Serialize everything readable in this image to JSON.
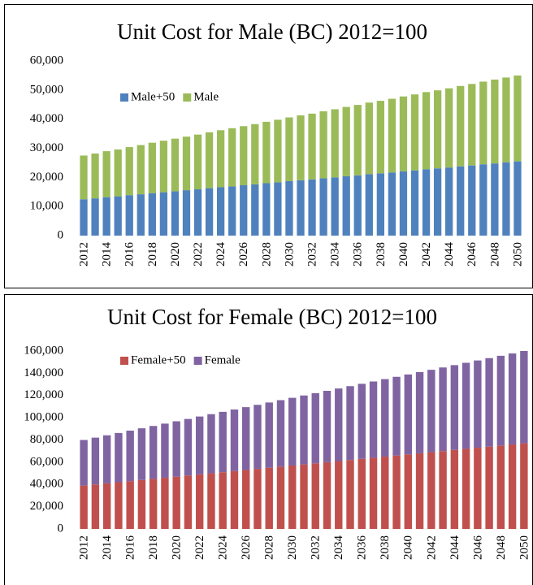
{
  "chart_data": [
    {
      "type": "bar",
      "stacked": true,
      "title": "Unit Cost for Male (BC) 2012=100",
      "categories": [
        "2012",
        null,
        "2014",
        null,
        "2016",
        null,
        "2018",
        null,
        "2020",
        null,
        "2022",
        null,
        "2024",
        null,
        "2026",
        null,
        "2028",
        null,
        "2030",
        null,
        "2032",
        null,
        "2034",
        null,
        "2036",
        null,
        "2038",
        null,
        "2040",
        null,
        "2042",
        null,
        "2044",
        null,
        "2046",
        null,
        "2048",
        null,
        "2050"
      ],
      "series": [
        {
          "name": "Male+50",
          "color": "#4f81bd",
          "values": [
            12500,
            12800,
            13200,
            13500,
            13900,
            14200,
            14600,
            14900,
            15200,
            15600,
            15900,
            16300,
            16600,
            16900,
            17300,
            17600,
            18000,
            18300,
            18700,
            19000,
            19300,
            19700,
            20000,
            20400,
            20700,
            21100,
            21400,
            21700,
            22100,
            22400,
            22800,
            23100,
            23400,
            23800,
            24100,
            24500,
            24800,
            25200,
            25500
          ]
        },
        {
          "name": "Male",
          "color": "#9bbb59",
          "values": [
            15000,
            15400,
            15800,
            16100,
            16500,
            16900,
            17300,
            17700,
            18100,
            18400,
            18800,
            19200,
            19600,
            20000,
            20300,
            20700,
            21100,
            21500,
            21900,
            22300,
            22600,
            23000,
            23400,
            23800,
            24200,
            24600,
            24900,
            25300,
            25700,
            26100,
            26500,
            26800,
            27200,
            27600,
            28000,
            28400,
            28800,
            29100,
            29500
          ]
        }
      ],
      "ylim": [
        0,
        60000
      ],
      "yticks": [
        0,
        {
          "value": 10000,
          "label": "10,000"
        },
        {
          "value": 20000,
          "label": "20,000"
        },
        {
          "value": 30000,
          "label": "30,000"
        },
        {
          "value": 40000,
          "label": "40,000"
        },
        {
          "value": 50000,
          "label": "50,000"
        },
        {
          "value": 60000,
          "label": "60,000"
        }
      ],
      "legend": "top-left"
    },
    {
      "type": "bar",
      "stacked": true,
      "title": "Unit Cost for Female (BC) 2012=100",
      "categories": [
        "2012",
        null,
        "2014",
        null,
        "2016",
        null,
        "2018",
        null,
        "2020",
        null,
        "2022",
        null,
        "2024",
        null,
        "2026",
        null,
        "2028",
        null,
        "2030",
        null,
        "2032",
        null,
        "2034",
        null,
        "2036",
        null,
        "2038",
        null,
        "2040",
        null,
        "2042",
        null,
        "2044",
        null,
        "2046",
        null,
        "2048",
        null,
        "2050"
      ],
      "series": [
        {
          "name": "Female+50",
          "color": "#c0504d",
          "values": [
            39000,
            40000,
            41000,
            42000,
            43000,
            44000,
            45000,
            46000,
            47000,
            48000,
            49000,
            50000,
            51000,
            52000,
            53000,
            54000,
            55000,
            56000,
            57000,
            58000,
            59000,
            60000,
            61000,
            62000,
            63000,
            64000,
            65000,
            66000,
            67000,
            68000,
            69000,
            70000,
            71000,
            72000,
            73000,
            74000,
            75000,
            76000,
            77000
          ]
        },
        {
          "name": "Female",
          "color": "#8064a2",
          "values": [
            41000,
            42100,
            43200,
            44300,
            45400,
            46500,
            47600,
            48700,
            49800,
            50900,
            52100,
            53200,
            54300,
            55400,
            56500,
            57600,
            58700,
            59800,
            60900,
            62000,
            63100,
            64200,
            65300,
            66400,
            67500,
            68600,
            69700,
            70800,
            71900,
            73000,
            74100,
            75200,
            76300,
            77400,
            78500,
            79600,
            80700,
            81800,
            83000
          ]
        }
      ],
      "ylim": [
        0,
        160000
      ],
      "yticks": [
        0,
        {
          "value": 20000,
          "label": "20,000"
        },
        {
          "value": 40000,
          "label": "40,000"
        },
        {
          "value": 60000,
          "label": "60,000"
        },
        {
          "value": 80000,
          "label": "80,000"
        },
        {
          "value": 100000,
          "label": "100,000"
        },
        {
          "value": 120000,
          "label": "120,000"
        },
        {
          "value": 140000,
          "label": "140,000"
        },
        {
          "value": 160000,
          "label": "160,000"
        }
      ],
      "legend": "top-left"
    }
  ]
}
